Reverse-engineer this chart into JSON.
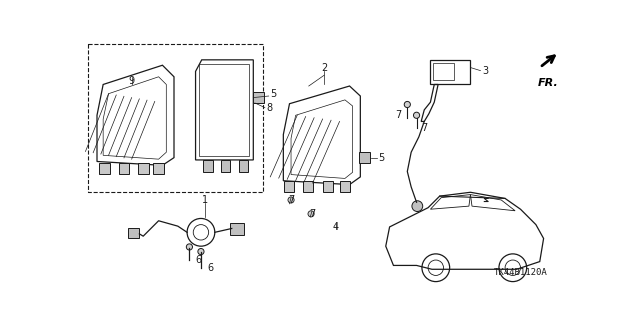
{
  "background_color": "#ffffff",
  "part_number": "TK44B1120A",
  "line_color": "#1a1a1a",
  "fig_width": 6.4,
  "fig_height": 3.19,
  "dpi": 100
}
